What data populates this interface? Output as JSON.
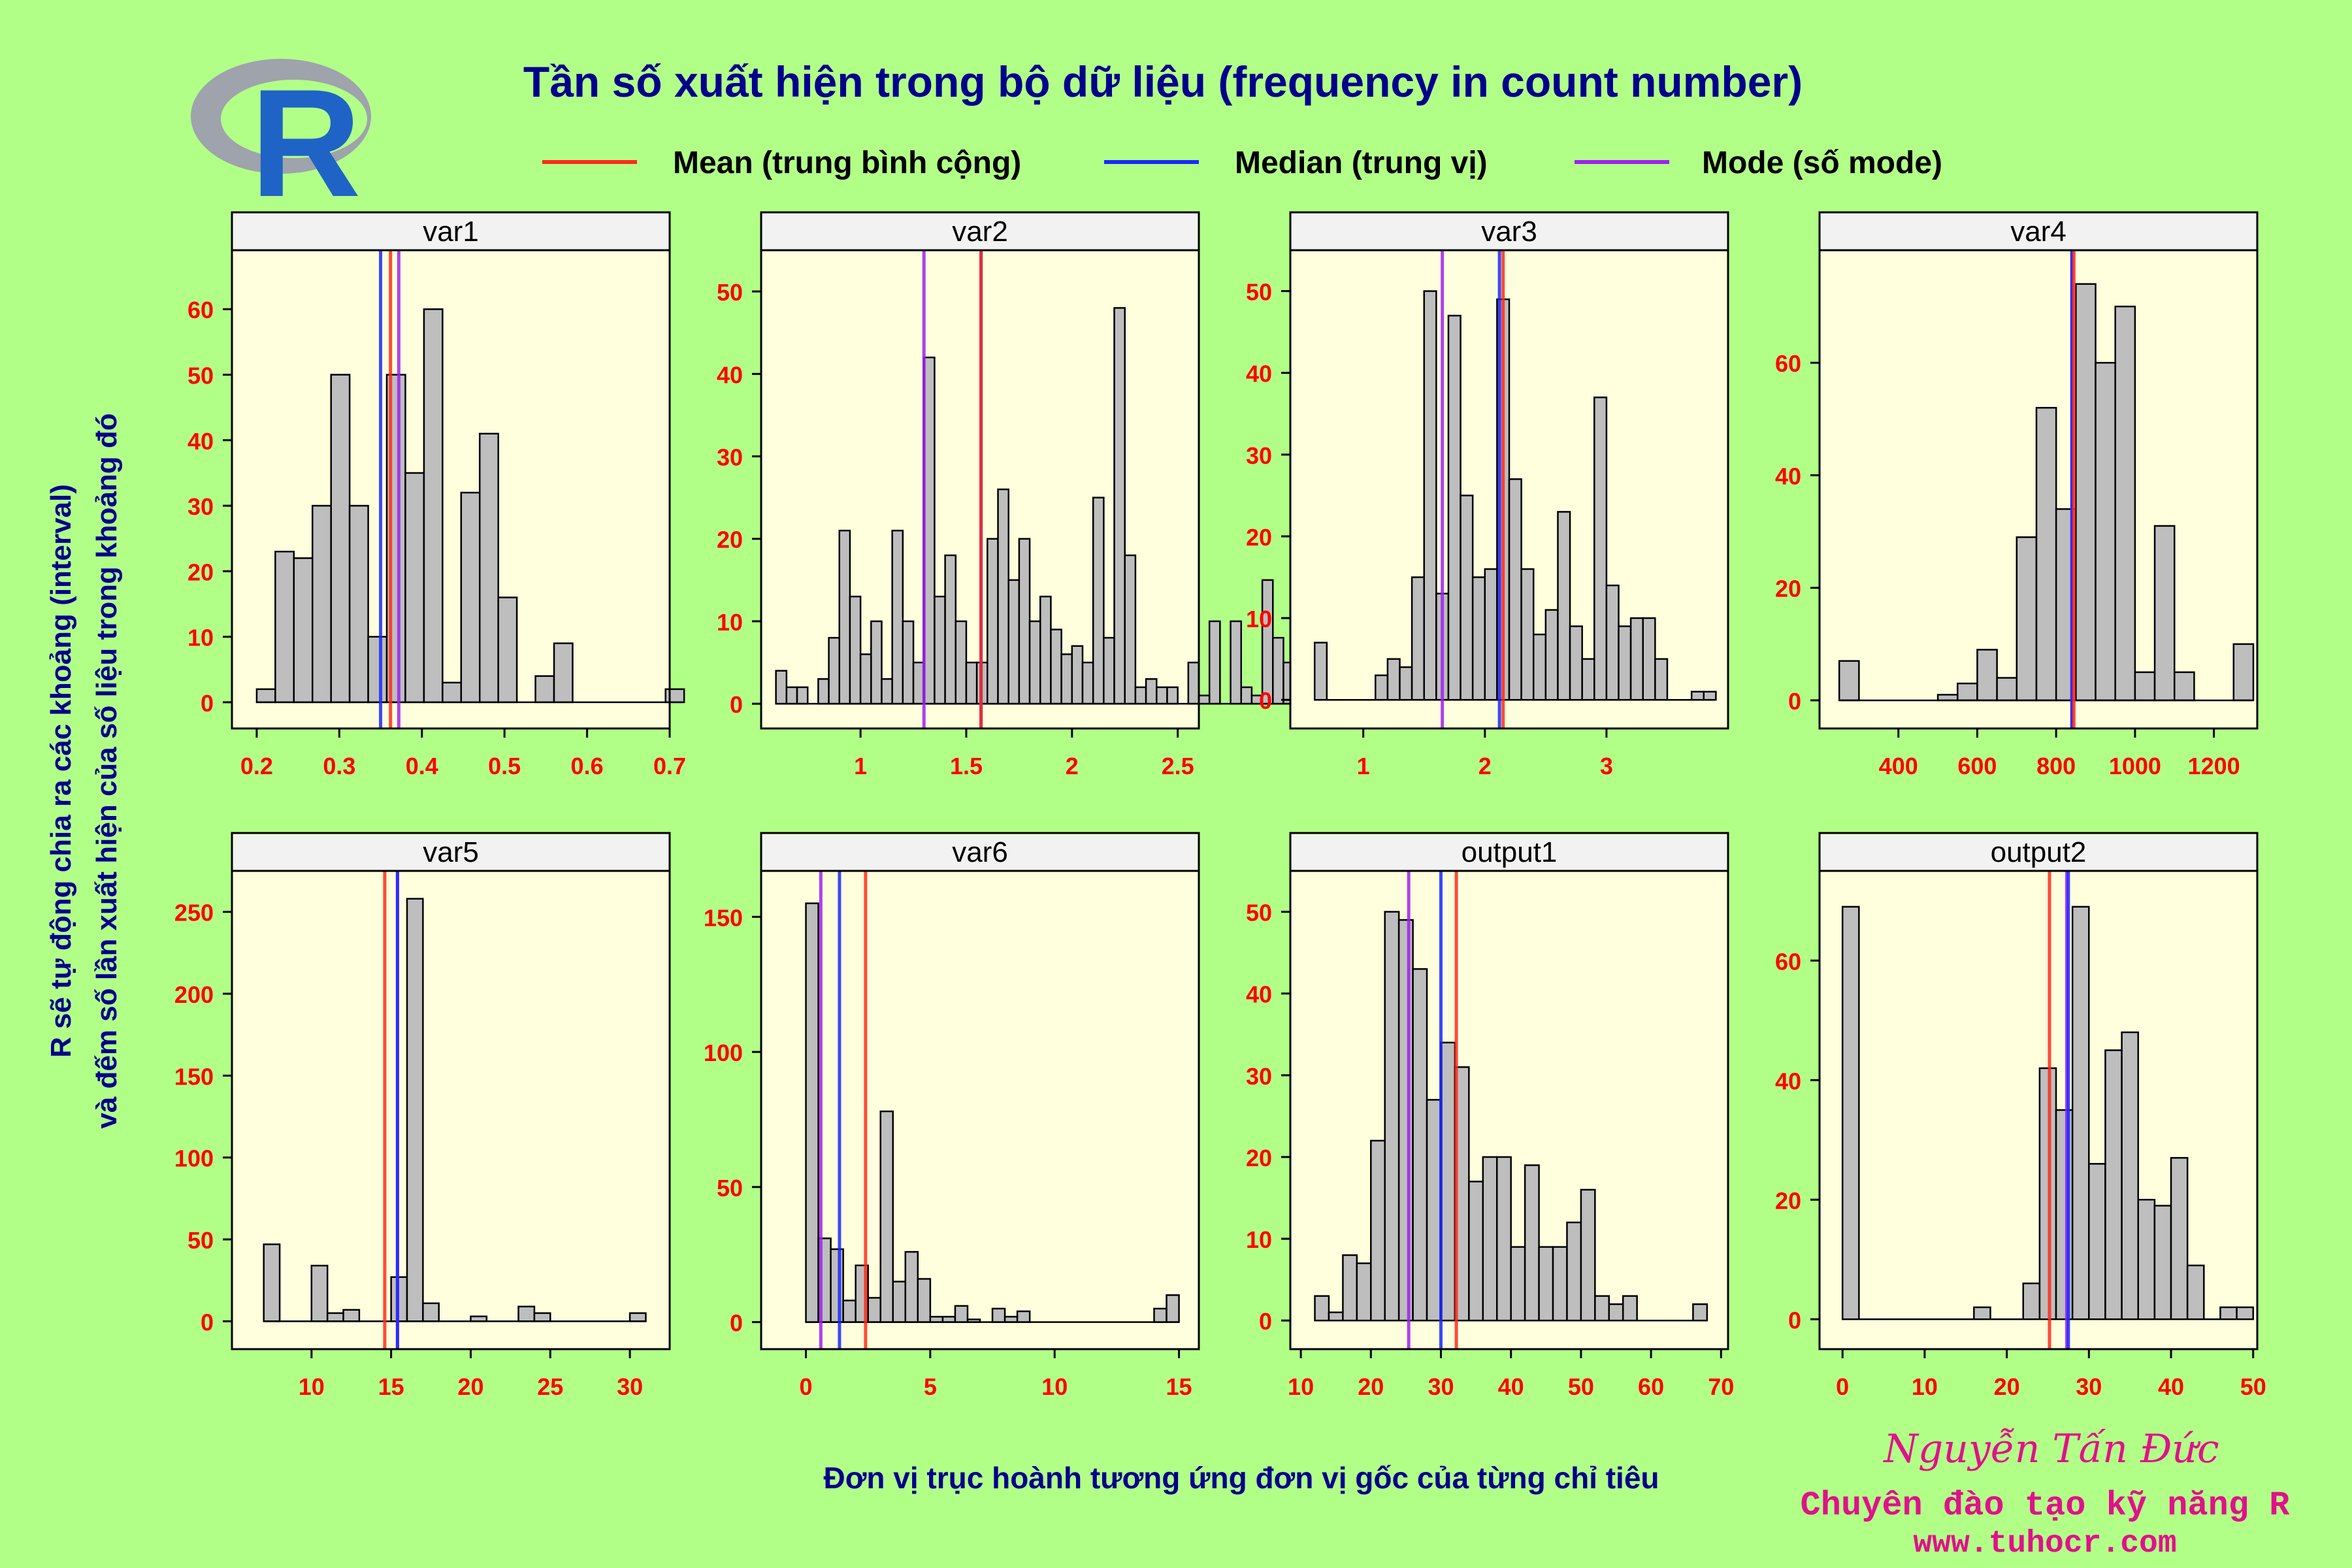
{
  "title": "Tần số xuất hiện trong bộ dữ liệu (frequency in count number)",
  "legend": [
    {
      "label": "Mean (trung bình cộng)",
      "color": "#ff2a1a"
    },
    {
      "label": "Median (trung vị)",
      "color": "#1a28ff"
    },
    {
      "label": "Mode (số mode)",
      "color": "#a020f0"
    }
  ],
  "y_label_line1": "R sẽ tự động chia ra các khoảng (interval)",
  "y_label_line2": "và đếm số lần xuất hiện của số liệu trong khoảng đó",
  "x_label": "Đơn vị trục hoành tương ứng đơn vị gốc của từng chỉ tiêu",
  "logo_letter": "R",
  "credit": {
    "name": "Nguyễn Tấn Đức",
    "tagline": "Chuyên đào tạo kỹ năng R",
    "website": "www.tuhocr.com"
  },
  "colors": {
    "background": "#b2ff88",
    "panel": "#ffffdd",
    "strip": "#f2f2f2",
    "bar": "#bebebe",
    "tick_label": "#ff0000",
    "title": "#00008b"
  },
  "chart_data": [
    {
      "type": "bar",
      "name": "var1",
      "start": 0.2,
      "width": 0.0225,
      "values": [
        2,
        23,
        22,
        30,
        50,
        30,
        10,
        50,
        35,
        60,
        3,
        32,
        41,
        16,
        0,
        4,
        9,
        0,
        0,
        0,
        0,
        0,
        2
      ],
      "xticks": [
        0.2,
        0.3,
        0.4,
        0.5,
        0.6,
        0.7
      ],
      "xlim": [
        0.17,
        0.7
      ],
      "yticks": [
        0,
        10,
        20,
        30,
        40,
        50,
        60
      ],
      "ylim": [
        -4,
        69
      ],
      "mean": 0.362,
      "median": 0.35,
      "mode": 0.372
    },
    {
      "type": "bar",
      "name": "var2",
      "start": 0.6,
      "width": 0.05,
      "values": [
        4,
        2,
        2,
        0,
        3,
        8,
        21,
        13,
        6,
        10,
        3,
        21,
        10,
        5,
        42,
        13,
        18,
        10,
        5,
        5,
        20,
        26,
        15,
        20,
        10,
        13,
        9,
        6,
        7,
        5,
        25,
        8,
        48,
        18,
        2,
        3,
        2,
        2,
        0,
        5,
        1,
        10,
        0,
        10,
        2,
        1,
        15,
        8,
        5
      ],
      "xticks": [
        1.0,
        1.5,
        2.0,
        2.5
      ],
      "xlim": [
        0.53,
        2.6
      ],
      "yticks": [
        0,
        10,
        20,
        30,
        40,
        50
      ],
      "ylim": [
        -3,
        55
      ],
      "mean": 1.57,
      "median": 1.57,
      "mode": 1.3
    },
    {
      "type": "bar",
      "name": "var3",
      "start": 0.6,
      "width": 0.1,
      "values": [
        7,
        0,
        0,
        0,
        0,
        3,
        5,
        4,
        15,
        50,
        13,
        47,
        25,
        15,
        16,
        49,
        27,
        16,
        8,
        11,
        23,
        9,
        5,
        37,
        14,
        9,
        10,
        10,
        5,
        0,
        0,
        1,
        1
      ],
      "xticks": [
        1,
        2,
        3
      ],
      "xlim": [
        0.4,
        4.0
      ],
      "yticks": [
        0,
        10,
        20,
        30,
        40,
        50
      ],
      "ylim": [
        -3.5,
        55
      ],
      "mean": 2.15,
      "median": 2.12,
      "mode": 1.65
    },
    {
      "type": "bar",
      "name": "var4",
      "start": 250,
      "width": 50,
      "values": [
        7,
        0,
        0,
        0,
        0,
        1,
        3,
        9,
        4,
        29,
        52,
        34,
        74,
        60,
        70,
        5,
        31,
        5,
        0,
        0,
        10
      ],
      "xticks": [
        400,
        600,
        800,
        1000,
        1200
      ],
      "xlim": [
        200,
        1310
      ],
      "yticks": [
        0,
        20,
        40,
        60
      ],
      "ylim": [
        -5,
        80
      ],
      "mean": 845,
      "median": 840,
      "mode": 840
    },
    {
      "type": "bar",
      "name": "var5",
      "start": 7,
      "width": 1,
      "values": [
        47,
        0,
        0,
        34,
        5,
        7,
        0,
        0,
        27,
        258,
        11,
        0,
        0,
        3,
        0,
        0,
        9,
        5,
        0,
        0,
        0,
        0,
        0,
        5
      ],
      "xticks": [
        10,
        15,
        20,
        25,
        30
      ],
      "xlim": [
        5,
        32.5
      ],
      "yticks": [
        0,
        50,
        100,
        150,
        200,
        250
      ],
      "ylim": [
        -17,
        275
      ],
      "mean": 14.6,
      "median": 15.4,
      "mode": 15.4
    },
    {
      "type": "bar",
      "name": "var6",
      "start": 0,
      "width": 0.5,
      "values": [
        155,
        31,
        27,
        8,
        21,
        9,
        78,
        15,
        26,
        16,
        2,
        2,
        6,
        1,
        0,
        5,
        2,
        4,
        0,
        0,
        0,
        0,
        0,
        0,
        0,
        0,
        0,
        0,
        5,
        10
      ],
      "xticks": [
        0,
        5,
        10,
        15
      ],
      "xlim": [
        -1.8,
        15.8
      ],
      "yticks": [
        0,
        50,
        100,
        150
      ],
      "ylim": [
        -10,
        167
      ],
      "mean": 2.4,
      "median": 1.35,
      "mode": 0.6
    },
    {
      "type": "bar",
      "name": "output1",
      "start": 12,
      "width": 2,
      "values": [
        3,
        1,
        8,
        7,
        22,
        50,
        49,
        43,
        27,
        34,
        31,
        17,
        20,
        20,
        9,
        19,
        9,
        9,
        12,
        16,
        3,
        2,
        3,
        0,
        0,
        0,
        0,
        2
      ],
      "xticks": [
        10,
        20,
        30,
        40,
        50,
        60,
        70
      ],
      "xlim": [
        8.5,
        71
      ],
      "yticks": [
        0,
        10,
        20,
        30,
        40,
        50
      ],
      "ylim": [
        -3.5,
        55
      ],
      "mean": 32.2,
      "median": 30.0,
      "mode": 25.4
    },
    {
      "type": "bar",
      "name": "output2",
      "start": 0,
      "width": 2,
      "values": [
        69,
        0,
        0,
        0,
        0,
        0,
        0,
        0,
        2,
        0,
        0,
        6,
        42,
        35,
        69,
        26,
        45,
        48,
        20,
        19,
        27,
        9,
        0,
        2,
        2
      ],
      "xticks": [
        0,
        10,
        20,
        30,
        40,
        50
      ],
      "xlim": [
        -2.8,
        50.5
      ],
      "yticks": [
        0,
        20,
        40,
        60
      ],
      "ylim": [
        -5,
        75
      ],
      "mean": 25.2,
      "median": 27.5,
      "mode": 27.3
    }
  ]
}
